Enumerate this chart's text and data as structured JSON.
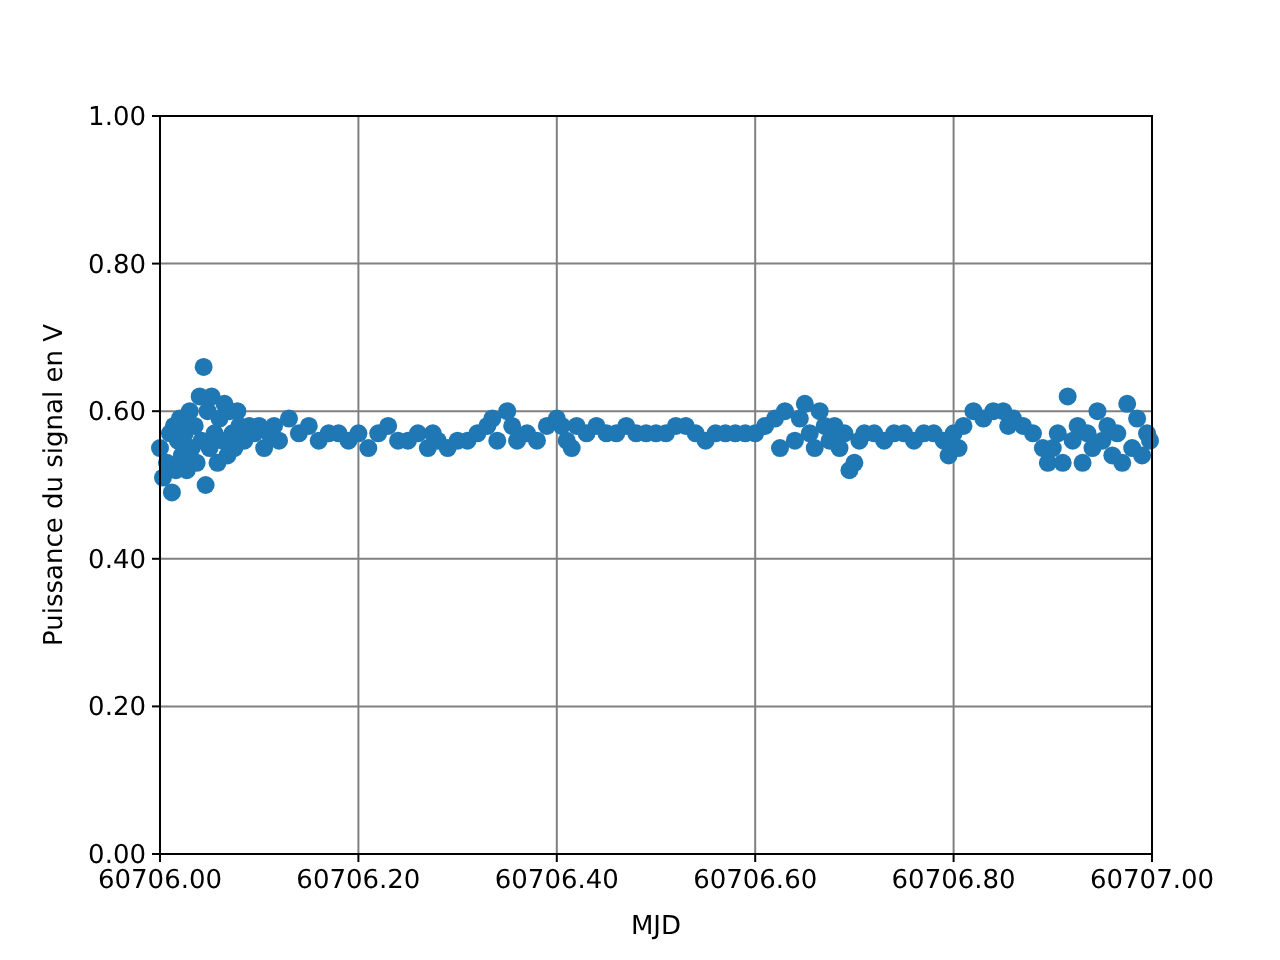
{
  "chart_data": {
    "type": "scatter",
    "xlabel": "MJD",
    "ylabel": "Puissance du signal en V",
    "xlim": [
      60706.0,
      60707.0
    ],
    "xticks": [
      {
        "value": 60706.0,
        "label": "60706.00"
      },
      {
        "value": 60706.2,
        "label": "60706.20"
      },
      {
        "value": 60706.4,
        "label": "60706.40"
      },
      {
        "value": 60706.6,
        "label": "60706.60"
      },
      {
        "value": 60706.8,
        "label": "60706.80"
      },
      {
        "value": 60707.0,
        "label": "60707.00"
      }
    ],
    "ylim": [
      0,
      1
    ],
    "yticks": [
      {
        "value": 0,
        "label": "0.00"
      },
      {
        "value": 0.2,
        "label": "0.20"
      },
      {
        "value": 0.4,
        "label": "0.40"
      },
      {
        "value": 0.6,
        "label": "0.60"
      },
      {
        "value": 0.8,
        "label": "0.80"
      },
      {
        "value": 1,
        "label": "1.00"
      }
    ],
    "grid": true,
    "marker": "circle",
    "series": [
      {
        "color": "#1f77b4",
        "x": [
          60706.0,
          60706.003,
          60706.007,
          60706.01,
          60706.012,
          60706.014,
          60706.016,
          60706.018,
          60706.02,
          60706.022,
          60706.025,
          60706.027,
          60706.03,
          60706.032,
          60706.035,
          60706.037,
          60706.04,
          60706.042,
          60706.044,
          60706.046,
          60706.048,
          60706.05,
          60706.052,
          60706.055,
          60706.058,
          60706.06,
          60706.063,
          60706.065,
          60706.068,
          60706.07,
          60706.073,
          60706.075,
          60706.078,
          60706.08,
          60706.085,
          60706.09,
          60706.095,
          60706.1,
          60706.105,
          60706.11,
          60706.115,
          60706.12,
          60706.13,
          60706.14,
          60706.15,
          60706.16,
          60706.17,
          60706.18,
          60706.19,
          60706.2,
          60706.21,
          60706.22,
          60706.23,
          60706.24,
          60706.25,
          60706.26,
          60706.27,
          60706.275,
          60706.28,
          60706.29,
          60706.3,
          60706.31,
          60706.32,
          60706.33,
          60706.335,
          60706.34,
          60706.35,
          60706.355,
          60706.36,
          60706.37,
          60706.38,
          60706.39,
          60706.4,
          60706.405,
          60706.41,
          60706.415,
          60706.42,
          60706.43,
          60706.44,
          60706.45,
          60706.46,
          60706.47,
          60706.48,
          60706.49,
          60706.5,
          60706.51,
          60706.52,
          60706.53,
          60706.54,
          60706.55,
          60706.56,
          60706.57,
          60706.58,
          60706.59,
          60706.6,
          60706.61,
          60706.62,
          60706.625,
          60706.63,
          60706.64,
          60706.645,
          60706.65,
          60706.655,
          60706.66,
          60706.665,
          60706.67,
          60706.675,
          60706.68,
          60706.685,
          60706.69,
          60706.695,
          60706.7,
          60706.705,
          60706.71,
          60706.72,
          60706.73,
          60706.74,
          60706.75,
          60706.76,
          60706.77,
          60706.78,
          60706.79,
          60706.795,
          60706.8,
          60706.805,
          60706.81,
          60706.82,
          60706.83,
          60706.84,
          60706.85,
          60706.855,
          60706.86,
          60706.87,
          60706.88,
          60706.89,
          60706.895,
          60706.9,
          60706.905,
          60706.91,
          60706.915,
          60706.92,
          60706.925,
          60706.93,
          60706.935,
          60706.94,
          60706.945,
          60706.95,
          60706.955,
          60706.96,
          60706.965,
          60706.97,
          60706.975,
          60706.98,
          60706.985,
          60706.99,
          60706.995,
          60706.998
        ],
        "values": [
          0.55,
          0.51,
          0.53,
          0.57,
          0.49,
          0.58,
          0.52,
          0.56,
          0.59,
          0.54,
          0.57,
          0.52,
          0.6,
          0.55,
          0.58,
          0.53,
          0.62,
          0.56,
          0.66,
          0.5,
          0.6,
          0.55,
          0.62,
          0.57,
          0.53,
          0.59,
          0.56,
          0.61,
          0.54,
          0.6,
          0.57,
          0.55,
          0.6,
          0.58,
          0.56,
          0.58,
          0.57,
          0.58,
          0.55,
          0.57,
          0.58,
          0.56,
          0.59,
          0.57,
          0.58,
          0.56,
          0.57,
          0.57,
          0.56,
          0.57,
          0.55,
          0.57,
          0.58,
          0.56,
          0.56,
          0.57,
          0.55,
          0.57,
          0.56,
          0.55,
          0.56,
          0.56,
          0.57,
          0.58,
          0.59,
          0.56,
          0.6,
          0.58,
          0.56,
          0.57,
          0.56,
          0.58,
          0.59,
          0.58,
          0.56,
          0.55,
          0.58,
          0.57,
          0.58,
          0.57,
          0.57,
          0.58,
          0.57,
          0.57,
          0.57,
          0.57,
          0.58,
          0.58,
          0.57,
          0.56,
          0.57,
          0.57,
          0.57,
          0.57,
          0.57,
          0.58,
          0.59,
          0.55,
          0.6,
          0.56,
          0.59,
          0.61,
          0.57,
          0.55,
          0.6,
          0.58,
          0.56,
          0.58,
          0.55,
          0.57,
          0.52,
          0.53,
          0.56,
          0.57,
          0.57,
          0.56,
          0.57,
          0.57,
          0.56,
          0.57,
          0.57,
          0.56,
          0.54,
          0.57,
          0.55,
          0.58,
          0.6,
          0.59,
          0.6,
          0.6,
          0.58,
          0.59,
          0.58,
          0.57,
          0.55,
          0.53,
          0.55,
          0.57,
          0.53,
          0.62,
          0.56,
          0.58,
          0.53,
          0.57,
          0.55,
          0.6,
          0.56,
          0.58,
          0.54,
          0.57,
          0.53,
          0.61,
          0.55,
          0.59,
          0.54,
          0.57,
          0.56
        ]
      }
    ]
  }
}
